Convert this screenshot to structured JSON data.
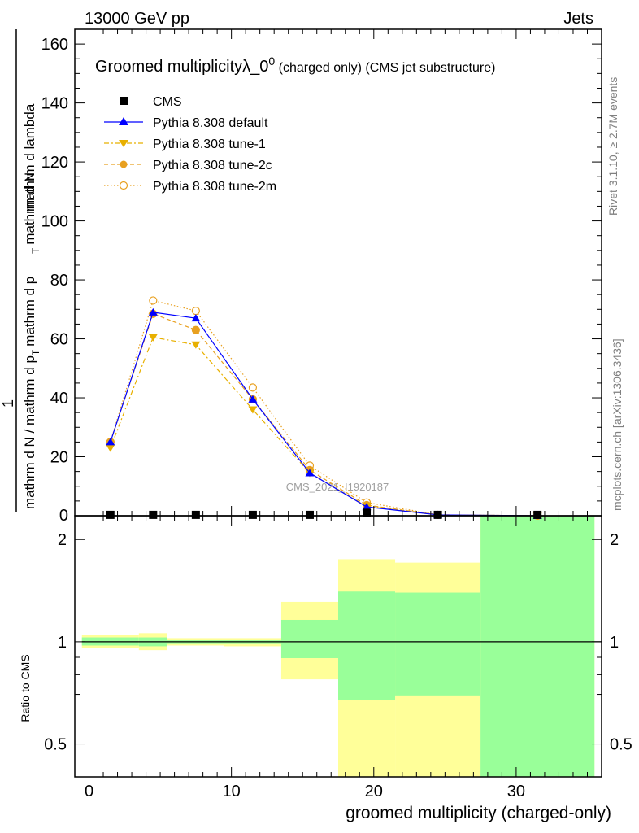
{
  "header": {
    "left": "13000 GeV pp",
    "right": "Jets"
  },
  "side": {
    "rivet": "Rivet 3.1.10, ≥ 2.7M events",
    "mcplots": "mcplots.cern.ch [arXiv:1306.3436]"
  },
  "chart_data": {
    "type": "line",
    "title_main": "Groomed multiplicityλ_0",
    "title_sup": "0",
    "title_sub": " (charged only) (CMS jet substructure)",
    "watermark": "CMS_2021_I1920187",
    "ylabel_num": "1",
    "ylabel_den": "mathrm d N / mathrm d p",
    "ylabel_rest": "mathrm d p",
    "ylabel_num2": "mathrm d",
    "ylabel_n2": "N",
    "ylabel_last": "mathrm d lambda",
    "ylabel_sub": "T",
    "ylabel_sub2": "T",
    "ylabel_mid": "mathrm d N",
    "ratio_ylabel": "Ratio to CMS",
    "xlabel": "groomed multiplicity (charged-only)",
    "xlim": [
      -1,
      36
    ],
    "ylim": [
      0,
      165
    ],
    "ratio_ylim": [
      0.4,
      2.35
    ],
    "x_ticks": [
      "0",
      "10",
      "20",
      "30"
    ],
    "y_ticks": [
      "20",
      "40",
      "60",
      "80",
      "100",
      "120",
      "140",
      "160"
    ],
    "ratio_y_ticks": [
      "0.5",
      "1",
      "2"
    ],
    "series": [
      {
        "name": "CMS",
        "color": "#000000",
        "x": [
          1.5,
          4.5,
          7.5,
          11.5,
          15.5,
          19.5,
          24.5,
          31.5
        ],
        "y": [
          0.3,
          0.3,
          0.3,
          0.3,
          0.3,
          1.0,
          0.3,
          0.3
        ]
      },
      {
        "name": "Pythia 8.308 default",
        "color": "#0000ff",
        "x": [
          1.5,
          4.5,
          7.5,
          11.5,
          15.5,
          19.5,
          24.5,
          31.5
        ],
        "y": [
          25,
          69,
          67,
          39.5,
          14.5,
          3,
          0.3,
          0.02
        ]
      },
      {
        "name": "Pythia 8.308 tune-1",
        "color": "#e8b000",
        "x": [
          1.5,
          4.5,
          7.5,
          11.5,
          15.5,
          19.5,
          24.5,
          31.5
        ],
        "y": [
          23,
          60.5,
          58,
          36,
          14.5,
          3.2,
          0.3,
          0.02
        ]
      },
      {
        "name": "Pythia 8.308 tune-2c",
        "color": "#e8a020",
        "x": [
          1.5,
          4.5,
          7.5,
          11.5,
          15.5,
          19.5,
          24.5,
          31.5
        ],
        "y": [
          25,
          68.5,
          63,
          39.5,
          15.5,
          3.6,
          0.3,
          0.02
        ]
      },
      {
        "name": "Pythia 8.308 tune-2m",
        "color": "#e8a020",
        "x": [
          1.5,
          4.5,
          7.5,
          11.5,
          15.5,
          19.5,
          24.5,
          31.5
        ],
        "y": [
          25,
          73,
          69.5,
          43.5,
          17,
          4.5,
          0.3,
          0.02
        ]
      }
    ],
    "ratio_bands": [
      {
        "x0": -0.5,
        "x1": 3.5,
        "inner": [
          0.975,
          1.03
        ],
        "outer": [
          0.96,
          1.05
        ]
      },
      {
        "x0": 3.5,
        "x1": 5.5,
        "inner": [
          0.97,
          1.03
        ],
        "outer": [
          0.945,
          1.06
        ]
      },
      {
        "x0": 5.5,
        "x1": 9.5,
        "inner": [
          0.985,
          1.01
        ],
        "outer": [
          0.975,
          1.025
        ]
      },
      {
        "x0": 9.5,
        "x1": 13.5,
        "inner": [
          0.985,
          1.01
        ],
        "outer": [
          0.97,
          1.025
        ]
      },
      {
        "x0": 13.5,
        "x1": 17.5,
        "inner": [
          0.895,
          1.16
        ],
        "outer": [
          0.775,
          1.31
        ]
      },
      {
        "x0": 17.5,
        "x1": 21.5,
        "inner": [
          0.675,
          1.405
        ],
        "outer": [
          0.35,
          1.75
        ]
      },
      {
        "x0": 21.5,
        "x1": 27.5,
        "inner": [
          0.695,
          1.395
        ],
        "outer": [
          0.35,
          1.71
        ]
      },
      {
        "x0": 27.5,
        "x1": 35.5,
        "inner": [
          0.35,
          2.5
        ],
        "outer": [
          0.35,
          2.5
        ]
      }
    ],
    "band_colors": {
      "inner": "#99ff99",
      "outer": "#ffff99"
    }
  }
}
